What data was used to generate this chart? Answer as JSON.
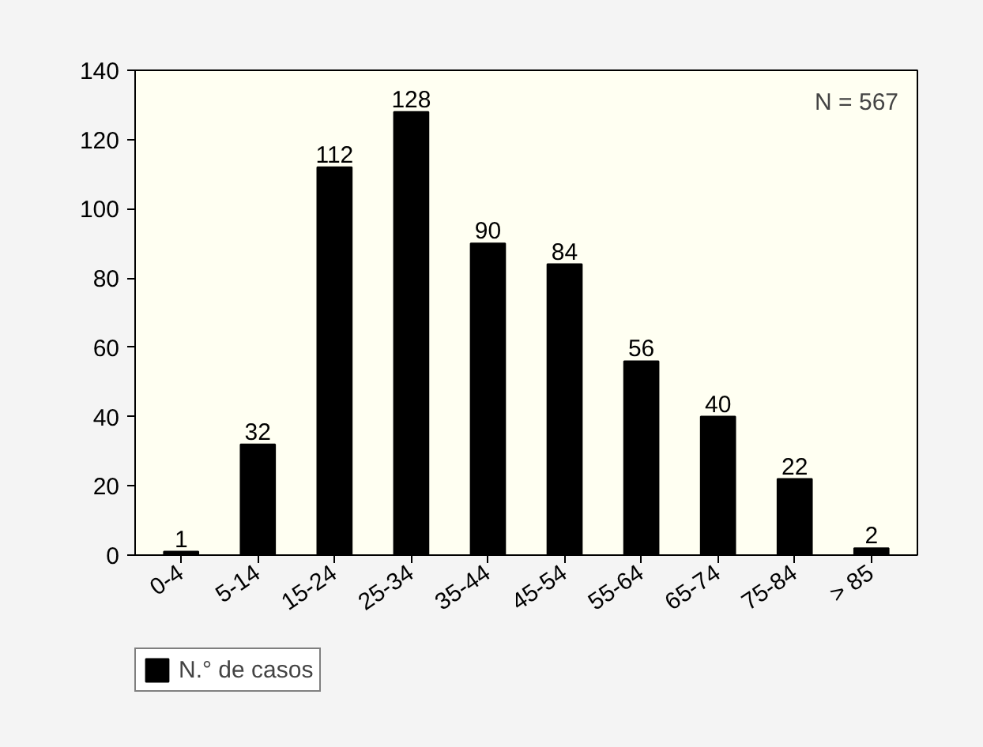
{
  "chart_data": {
    "type": "bar",
    "categories": [
      "0-4",
      "5-14",
      "15-24",
      "25-34",
      "35-44",
      "45-54",
      "55-64",
      "65-74",
      "75-84",
      "> 85"
    ],
    "series": [
      {
        "name": "N.° de casos",
        "color": "#000000",
        "values": [
          1,
          32,
          112,
          128,
          90,
          84,
          56,
          40,
          22,
          2
        ]
      }
    ],
    "ylim": [
      0,
      140
    ],
    "yticks": [
      0,
      20,
      40,
      60,
      80,
      100,
      120,
      140
    ],
    "data_labels": true,
    "grid": false,
    "legend": "bottom left",
    "annotations": [
      "N = 567"
    ]
  }
}
